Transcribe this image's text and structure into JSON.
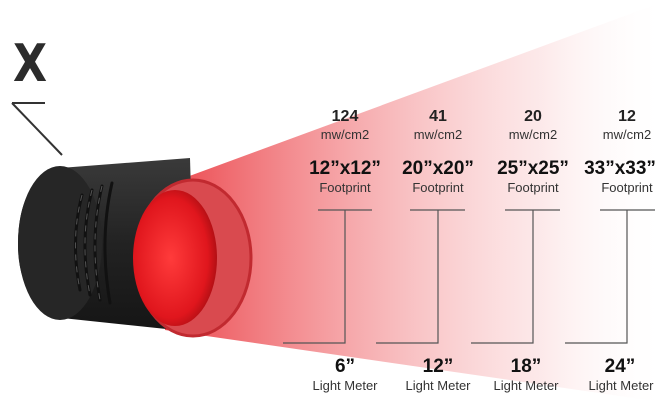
{
  "logo": {
    "letter": "X"
  },
  "columns": [
    {
      "intensity": "124",
      "unit": "mw/cm2",
      "footprint": "12”x12”",
      "footprint_label": "Footprint",
      "distance": "6”",
      "distance_label": "Light Meter"
    },
    {
      "intensity": "41",
      "unit": "mw/cm2",
      "footprint": "20”x20”",
      "footprint_label": "Footprint",
      "distance": "12”",
      "distance_label": "Light Meter"
    },
    {
      "intensity": "20",
      "unit": "mw/cm2",
      "footprint": "25”x25”",
      "footprint_label": "Footprint",
      "distance": "18”",
      "distance_label": "Light Meter"
    },
    {
      "intensity": "12",
      "unit": "mw/cm2",
      "footprint": "33”x33”",
      "footprint_label": "Footprint",
      "distance": "24”",
      "distance_label": "Light Meter"
    }
  ],
  "colors": {
    "beam": "#e8262d",
    "lens": "#e8262d",
    "housing": "#2a2a2a",
    "lines": "#555555"
  }
}
